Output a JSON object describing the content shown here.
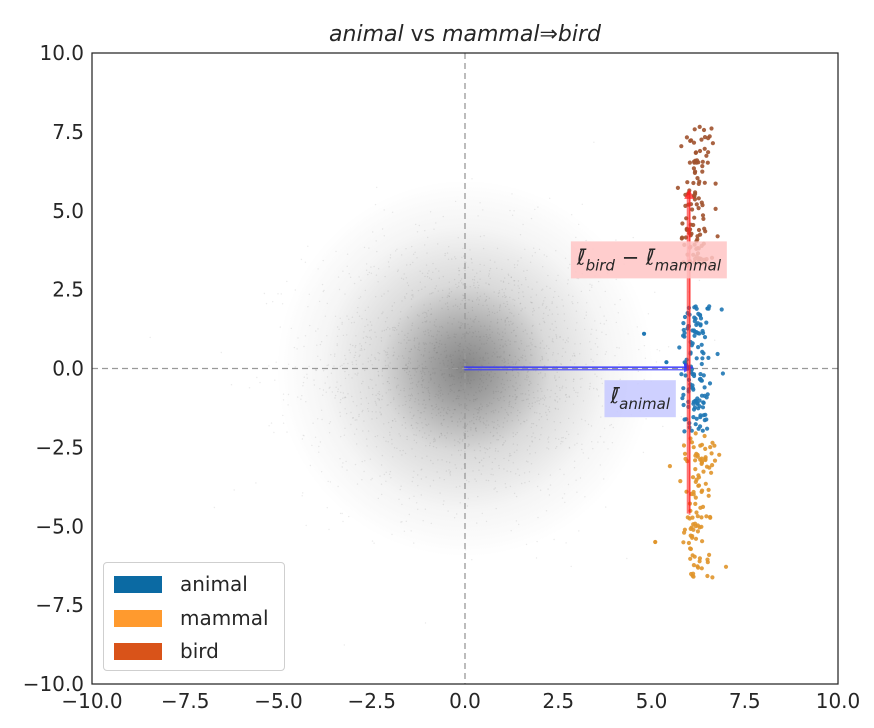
{
  "chart_data": {
    "type": "scatter",
    "title": {
      "pre": "animal",
      "mid": " vs ",
      "mid2": "mammal",
      "arrow": "⇒",
      "post": "bird"
    },
    "xlim": [
      -10.0,
      10.0
    ],
    "ylim": [
      -10.0,
      10.0
    ],
    "xticks": [
      "−10.0",
      "−7.5",
      "−5.0",
      "−2.5",
      "0.0",
      "2.5",
      "5.0",
      "7.5",
      "10.0"
    ],
    "yticks": [
      "−10.0",
      "−7.5",
      "−5.0",
      "−2.5",
      "0.0",
      "2.5",
      "5.0",
      "7.5",
      "10.0"
    ],
    "grid": false,
    "reference_lines": {
      "x": 0.0,
      "y": 0.0,
      "style": "dashed",
      "color": "#999999"
    },
    "background_cloud": {
      "center": [
        0.0,
        0.0
      ],
      "spread": 2.2,
      "color": "#555555"
    },
    "series": [
      {
        "name": "animal",
        "color": "#1f77b4",
        "legend_color": "#0b6aa3",
        "x_center": 6.2,
        "x_spread": 0.22,
        "y_range": [
          -2.0,
          2.0
        ]
      },
      {
        "name": "mammal",
        "color": "#e0952b",
        "legend_color": "#ff9a2e",
        "x_center": 6.2,
        "x_spread": 0.22,
        "y_range": [
          -6.7,
          -2.0
        ]
      },
      {
        "name": "bird",
        "color": "#a0522d",
        "legend_color": "#d95319",
        "x_center": 6.2,
        "x_spread": 0.22,
        "y_range": [
          3.2,
          7.7
        ]
      }
    ],
    "vectors": [
      {
        "from": [
          0.0,
          0.0
        ],
        "to": [
          6.0,
          0.0
        ],
        "color": "#3333ff",
        "label": "ℓ̄",
        "label_sub": "animal",
        "label_bg": "#c5c8ff",
        "label_pos": [
          3.9,
          -1.1
        ]
      },
      {
        "from": [
          6.0,
          -4.6
        ],
        "to": [
          6.0,
          5.6
        ],
        "color": "#ff2020",
        "label": "ℓ̄",
        "label_sub": "bird",
        "label_mid": " − ",
        "label2": "ℓ̄",
        "label2_sub": "mammal",
        "label_bg": "#ffc4c4",
        "label_pos": [
          3.0,
          3.3
        ]
      }
    ],
    "legend": {
      "position": "lower-left",
      "entries": [
        "animal",
        "mammal",
        "bird"
      ]
    }
  }
}
